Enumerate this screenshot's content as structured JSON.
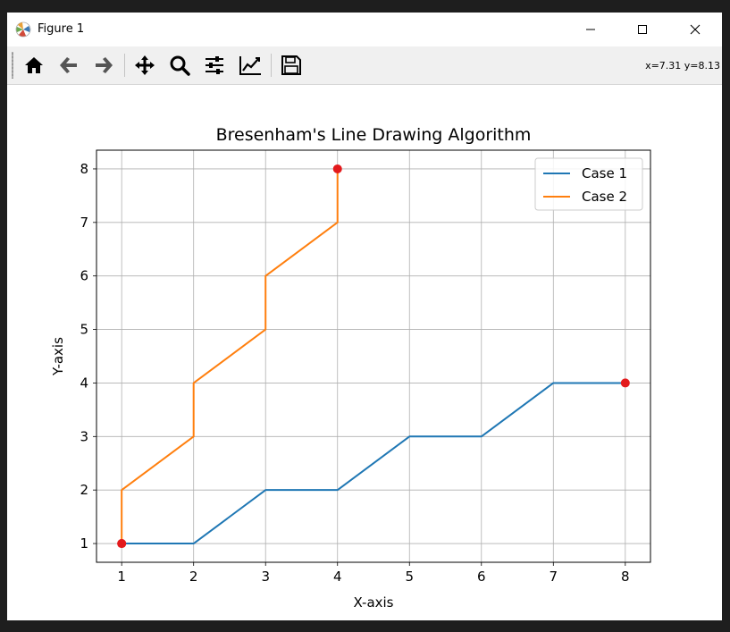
{
  "window": {
    "title": "Figure 1",
    "app_icon": "matplotlib-icon",
    "controls": [
      "minimize-icon",
      "maximize-icon",
      "close-icon"
    ]
  },
  "toolbar": {
    "buttons": [
      {
        "name": "home",
        "icon": "home-icon"
      },
      {
        "name": "back",
        "icon": "back-arrow-icon"
      },
      {
        "name": "forward",
        "icon": "forward-arrow-icon"
      },
      {
        "name": "pan",
        "icon": "move-icon"
      },
      {
        "name": "zoom",
        "icon": "zoom-icon"
      },
      {
        "name": "configure-subplots",
        "icon": "sliders-icon"
      },
      {
        "name": "edit-axis",
        "icon": "line-chart-icon"
      },
      {
        "name": "save",
        "icon": "save-icon"
      }
    ],
    "coordinates": "x=7.31 y=8.13"
  },
  "chart_data": {
    "type": "line",
    "title": "Bresenham's Line Drawing Algorithm",
    "xlabel": "X-axis",
    "ylabel": "Y-axis",
    "xlim": [
      0.65,
      8.35
    ],
    "ylim": [
      0.65,
      8.35
    ],
    "xticks": [
      1,
      2,
      3,
      4,
      5,
      6,
      7,
      8
    ],
    "yticks": [
      1,
      2,
      3,
      4,
      5,
      6,
      7,
      8
    ],
    "grid": true,
    "legend_position": "top-right",
    "series": [
      {
        "name": "Case 1",
        "color": "#1f77b4",
        "x": [
          1,
          2,
          3,
          4,
          5,
          6,
          7,
          8
        ],
        "y": [
          1,
          1,
          2,
          2,
          3,
          3,
          4,
          4
        ]
      },
      {
        "name": "Case 2",
        "color": "#ff7f0e",
        "x": [
          1,
          1,
          2,
          2,
          3,
          3,
          4,
          4
        ],
        "y": [
          1,
          2,
          3,
          4,
          5,
          6,
          7,
          8
        ]
      }
    ],
    "endpoints": {
      "color": "#e31a1c",
      "points": [
        [
          1,
          1
        ],
        [
          8,
          4
        ],
        [
          1,
          1
        ],
        [
          4,
          8
        ]
      ]
    }
  }
}
